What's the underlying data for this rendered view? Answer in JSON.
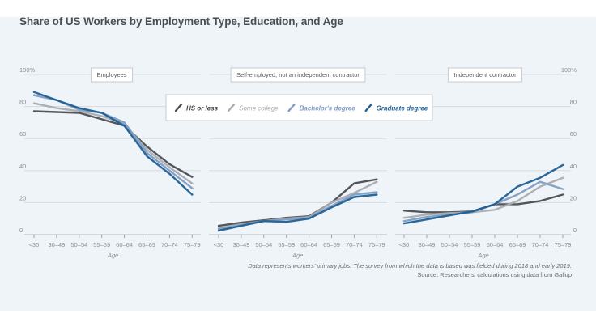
{
  "chart_data": [
    {
      "type": "line",
      "panel": "Employees",
      "title": "Employees",
      "xlabel": "Age",
      "ylabel": "",
      "categories": [
        "<30",
        "30–49",
        "50–54",
        "55–59",
        "60–64",
        "65–69",
        "70–74",
        "75–79"
      ],
      "ylim": [
        0,
        100
      ],
      "yticks": [
        "0",
        "20",
        "40",
        "60",
        "80",
        "100%"
      ],
      "grid": true,
      "series": [
        {
          "name": "HS or less",
          "values": [
            77,
            76.5,
            76,
            72,
            68,
            55,
            44,
            36
          ]
        },
        {
          "name": "Some college",
          "values": [
            82,
            79,
            77,
            74,
            69,
            53,
            42,
            32
          ]
        },
        {
          "name": "Bachelor's degree",
          "values": [
            87,
            84,
            78,
            76,
            70,
            51,
            40,
            29
          ]
        },
        {
          "name": "Graduate degree",
          "values": [
            89,
            84,
            79,
            76,
            68,
            49,
            38,
            25
          ]
        }
      ]
    },
    {
      "type": "line",
      "panel": "Self-employed, not an independent contractor",
      "title": "Self-employed, not an independent contractor",
      "xlabel": "Age",
      "ylabel": "",
      "categories": [
        "<30",
        "30–49",
        "50–54",
        "55–59",
        "60–64",
        "65–69",
        "70–74",
        "75–79"
      ],
      "ylim": [
        0,
        100
      ],
      "grid": true,
      "series": [
        {
          "name": "HS or less",
          "values": [
            5.5,
            7.5,
            9,
            10.5,
            11.5,
            20,
            32,
            34.5
          ]
        },
        {
          "name": "Some college",
          "values": [
            4,
            6.5,
            8.5,
            10,
            11,
            20,
            26,
            33
          ]
        },
        {
          "name": "Bachelor's degree",
          "values": [
            3.5,
            6,
            8.5,
            9.5,
            10.5,
            18,
            25,
            26.5
          ]
        },
        {
          "name": "Graduate degree",
          "values": [
            2.5,
            5.5,
            8.5,
            8,
            10,
            17,
            23.5,
            25
          ]
        }
      ]
    },
    {
      "type": "line",
      "panel": "Independent contractor",
      "title": "Independent contractor",
      "xlabel": "Age",
      "ylabel": "",
      "categories": [
        "<30",
        "30–49",
        "50–54",
        "55–59",
        "60–64",
        "65–69",
        "70–74",
        "75–79"
      ],
      "ylim": [
        0,
        100
      ],
      "yticks": [
        "0",
        "20",
        "40",
        "60",
        "80",
        "100%"
      ],
      "grid": true,
      "series": [
        {
          "name": "HS or less",
          "values": [
            15,
            14,
            14,
            14.5,
            19,
            19,
            21,
            25
          ]
        },
        {
          "name": "Some college",
          "values": [
            10.5,
            12.5,
            13.5,
            14,
            15.5,
            21,
            30,
            35.5
          ]
        },
        {
          "name": "Bachelor's degree",
          "values": [
            8.5,
            11,
            12.5,
            14,
            19,
            25,
            33,
            28.5
          ]
        },
        {
          "name": "Graduate degree",
          "values": [
            7,
            9.5,
            12,
            14.5,
            19,
            30,
            35.5,
            43.5
          ]
        }
      ]
    }
  ],
  "figure": {
    "title": "Share of US Workers by Employment Type, Education, and Age",
    "legend_position": "top-center",
    "legend": [
      {
        "name": "HS or less",
        "color": "#4a4d52"
      },
      {
        "name": "Some college",
        "color": "#a9adb1"
      },
      {
        "name": "Bachelor's degree",
        "color": "#7f9dc4"
      },
      {
        "name": "Graduate degree",
        "color": "#1f5f95"
      }
    ],
    "note": "Data represents workers’ primary jobs. The survey from which the data is based was fielded during 2018 and early 2019.",
    "source": "Source: Researchers’ calculations using data from Gallup"
  }
}
